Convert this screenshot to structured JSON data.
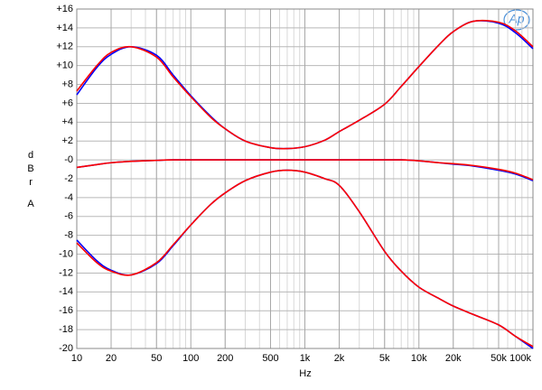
{
  "chart_data": {
    "type": "line",
    "x_label": "Hz",
    "y_label": "dBr",
    "y_label_suffix": "A",
    "logo": "Ap",
    "xscale": "log",
    "grid": true,
    "xlim": [
      10,
      100000
    ],
    "ylim": [
      -20,
      16
    ],
    "xticks": [
      10,
      20,
      50,
      100,
      200,
      500,
      {
        "value": 1000,
        "label": "1k"
      },
      {
        "value": 2000,
        "label": "2k"
      },
      {
        "value": 5000,
        "label": "5k"
      },
      {
        "value": 10000,
        "label": "10k"
      },
      {
        "value": 20000,
        "label": "20k"
      },
      {
        "value": 50000,
        "label": "50k"
      },
      {
        "value": 100000,
        "label": "100k"
      }
    ],
    "yticks": [
      {
        "value": 16,
        "label": "+16"
      },
      {
        "value": 14,
        "label": "+14"
      },
      {
        "value": 12,
        "label": "+12"
      },
      {
        "value": 10,
        "label": "+10"
      },
      {
        "value": 8,
        "label": "+8"
      },
      {
        "value": 6,
        "label": "+6"
      },
      {
        "value": 4,
        "label": "+4"
      },
      {
        "value": 2,
        "label": "+2"
      },
      {
        "value": 0,
        "label": "-0"
      },
      -2,
      -4,
      -6,
      -8,
      -10,
      -12,
      -14,
      -16,
      -18,
      -20
    ],
    "x": [
      10,
      15,
      20,
      30,
      50,
      70,
      100,
      150,
      200,
      300,
      500,
      700,
      1000,
      1500,
      2000,
      3000,
      5000,
      7000,
      10000,
      15000,
      20000,
      30000,
      50000,
      70000,
      100000
    ],
    "series": [
      {
        "color": "#0000ff",
        "values": [
          6.9,
          9.8,
          11.2,
          12.0,
          11.1,
          9.0,
          6.8,
          4.6,
          3.3,
          2.0,
          1.3,
          1.2,
          1.4,
          2.1,
          3.0,
          4.2,
          5.9,
          7.8,
          9.9,
          12.2,
          13.6,
          14.7,
          14.5,
          13.5,
          11.8
        ]
      },
      {
        "color": "#0000ff",
        "values": [
          -0.8,
          -0.5,
          -0.3,
          -0.15,
          -0.05,
          0,
          0,
          0,
          0,
          0,
          0,
          0,
          0,
          0,
          0,
          0,
          0,
          0,
          -0.1,
          -0.3,
          -0.45,
          -0.65,
          -1.1,
          -1.5,
          -2.2
        ]
      },
      {
        "color": "#0000ff",
        "values": [
          -8.5,
          -10.7,
          -11.7,
          -12.2,
          -11.0,
          -9.1,
          -6.9,
          -4.7,
          -3.5,
          -2.2,
          -1.3,
          -1.1,
          -1.3,
          -2.0,
          -2.7,
          -5.5,
          -9.7,
          -11.8,
          -13.5,
          -14.7,
          -15.5,
          -16.4,
          -17.5,
          -18.7,
          -20.0
        ]
      },
      {
        "color": "#ff0000",
        "values": [
          7.3,
          10.0,
          11.4,
          12.0,
          10.9,
          8.8,
          6.7,
          4.5,
          3.3,
          2.0,
          1.3,
          1.2,
          1.4,
          2.1,
          3.0,
          4.2,
          5.9,
          7.8,
          9.9,
          12.2,
          13.6,
          14.7,
          14.6,
          13.7,
          12.0
        ]
      },
      {
        "color": "#ff0000",
        "values": [
          -0.8,
          -0.5,
          -0.3,
          -0.15,
          -0.05,
          0,
          0,
          0,
          0,
          0,
          0,
          0,
          0,
          0,
          0,
          0,
          0,
          0,
          -0.1,
          -0.3,
          -0.4,
          -0.6,
          -1.0,
          -1.4,
          -2.1
        ]
      },
      {
        "color": "#ff0000",
        "values": [
          -8.8,
          -10.9,
          -11.8,
          -12.2,
          -10.9,
          -9.0,
          -6.9,
          -4.7,
          -3.5,
          -2.2,
          -1.3,
          -1.1,
          -1.3,
          -2.0,
          -2.7,
          -5.5,
          -9.7,
          -11.8,
          -13.5,
          -14.7,
          -15.5,
          -16.4,
          -17.5,
          -18.7,
          -19.8
        ]
      }
    ]
  }
}
